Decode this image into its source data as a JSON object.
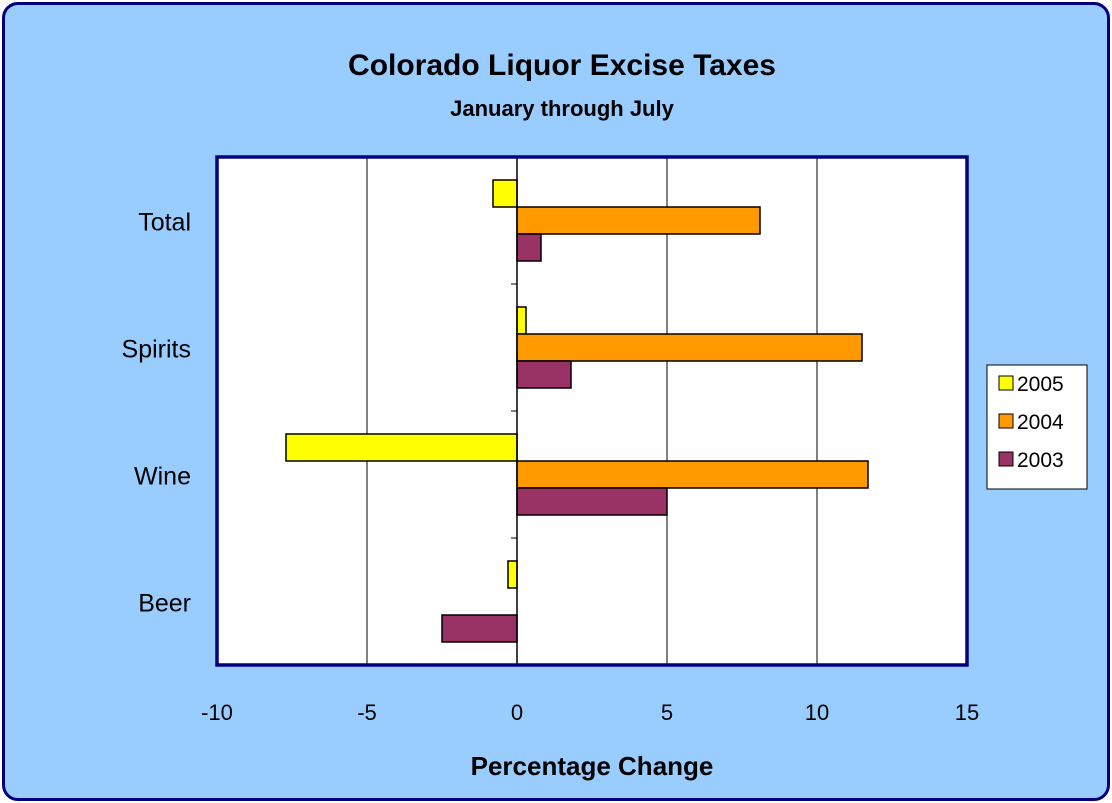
{
  "chart_data": {
    "type": "bar",
    "orientation": "horizontal",
    "title": "Colorado Liquor Excise Taxes",
    "subtitle": "January through July",
    "xlabel": "Percentage Change",
    "ylabel": "",
    "xlim": [
      -10,
      15
    ],
    "x_ticks": [
      "-10",
      "-5",
      "0",
      "5",
      "10",
      "15"
    ],
    "x_tick_values": [
      -10,
      -5,
      0,
      5,
      10,
      15
    ],
    "categories": [
      "Total",
      "Spirits",
      "Wine",
      "Beer"
    ],
    "series": [
      {
        "name": "2005",
        "color": "#ffff00",
        "values": [
          -0.8,
          0.3,
          -7.7,
          -0.3
        ]
      },
      {
        "name": "2004",
        "color": "#ff9900",
        "values": [
          8.1,
          11.5,
          11.7,
          0.0
        ]
      },
      {
        "name": "2003",
        "color": "#993366",
        "values": [
          0.8,
          1.8,
          5.0,
          -2.5
        ]
      }
    ],
    "grid": "vertical",
    "legend_position": "right",
    "background_color": "#99ccff",
    "plot_background": "#ffffff",
    "border_color": "#000080"
  }
}
